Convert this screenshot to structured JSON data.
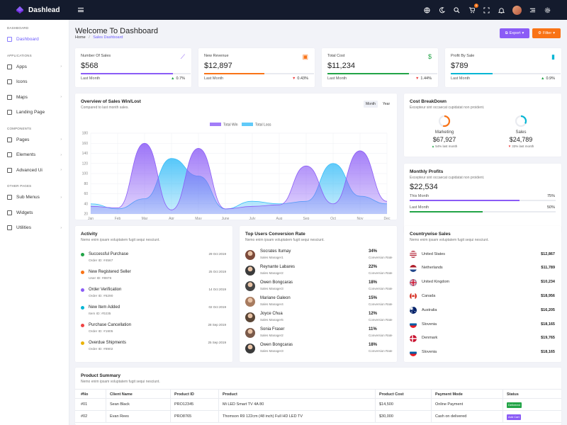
{
  "brand": "Dashlead",
  "sidebar": {
    "sections": [
      {
        "title": "DASHBOARD",
        "items": [
          {
            "label": "Dashboard",
            "active": true
          }
        ]
      },
      {
        "title": "APPLICATIONS",
        "items": [
          {
            "label": "Apps",
            "chev": true
          },
          {
            "label": "Icons"
          },
          {
            "label": "Maps",
            "chev": true
          },
          {
            "label": "Landing Page"
          }
        ]
      },
      {
        "title": "COMPONENTS",
        "items": [
          {
            "label": "Pages",
            "chev": true
          },
          {
            "label": "Elements",
            "chev": true
          },
          {
            "label": "Advanced Ui",
            "chev": true
          }
        ]
      },
      {
        "title": "OTHER PAGES",
        "items": [
          {
            "label": "Sub Menus",
            "chev": true
          },
          {
            "label": "Widgets"
          },
          {
            "label": "Utilities",
            "chev": true
          }
        ]
      }
    ]
  },
  "topbar": {
    "cart_badge": "5"
  },
  "page": {
    "title": "Welcome To Dashboard",
    "crumb_home": "Home",
    "crumb_sep": "/",
    "crumb_current": "Sales Dashboard",
    "export_label": "Export",
    "filter_label": "Filter"
  },
  "stats": [
    {
      "label": "Number Of Sales",
      "value": "$568",
      "pct": "0.7%",
      "last": "Last Month",
      "color": "#8b5cf6",
      "fill": 0.84,
      "icon": "chart-line-icon",
      "up": true
    },
    {
      "label": "New Revenue",
      "value": "$12,897",
      "pct": "0.43%",
      "last": "Last Month",
      "color": "#f97316",
      "fill": 0.55,
      "icon": "cash-icon",
      "up": false
    },
    {
      "label": "Total Cost",
      "value": "$11,234",
      "pct": "1.44%",
      "last": "Last Month",
      "color": "#22a447",
      "fill": 0.74,
      "icon": "dollar-icon",
      "up": false
    },
    {
      "label": "Profit By Sale",
      "value": "$789",
      "pct": "0.9%",
      "last": "Last Month",
      "color": "#06b6d4",
      "fill": 0.38,
      "icon": "signal-icon",
      "up": true
    }
  ],
  "overview": {
    "title": "Overview of Sales Win/Lost",
    "subtitle": "Compared to last month sales.",
    "tab_month": "Month",
    "tab_year": "Year"
  },
  "chart_data": {
    "type": "area",
    "categories": [
      "Jan",
      "Feb",
      "Mar",
      "Apr",
      "May",
      "June",
      "July",
      "Aug",
      "Sep",
      "Oct",
      "Nov",
      "Dec"
    ],
    "series": [
      {
        "name": "Total Win",
        "color": "#8b5cf6",
        "values": [
          35,
          32,
          160,
          28,
          150,
          30,
          35,
          38,
          115,
          40,
          145,
          45
        ]
      },
      {
        "name": "Total Loss",
        "color": "#38bdf8",
        "values": [
          40,
          30,
          50,
          130,
          95,
          30,
          45,
          40,
          45,
          120,
          55,
          40
        ]
      }
    ],
    "ylim": [
      20,
      180
    ],
    "yticks": [
      20,
      40,
      60,
      80,
      100,
      120,
      140,
      160,
      180
    ]
  },
  "cost": {
    "title": "Cost BreakDown",
    "subtitle": "Excepteur sint occaecat cupidatat non proident.",
    "items": [
      {
        "label": "Marketing",
        "value": "$67,927",
        "note": "54% last month",
        "color": "#f97316",
        "up": true,
        "frac": 0.54
      },
      {
        "label": "Sales",
        "value": "$24,789",
        "note": "33% last month",
        "color": "#06b6d4",
        "up": false,
        "frac": 0.33
      }
    ]
  },
  "profits": {
    "title": "Monthly Profits",
    "subtitle": "Excepteur sint occaecat cupidatat non proident.",
    "value": "$22,534",
    "rows": [
      {
        "label": "This Month",
        "pct": "75%",
        "color": "#8b5cf6",
        "frac": 0.75
      },
      {
        "label": "Last Month",
        "pct": "50%",
        "color": "#22a447",
        "frac": 0.5
      }
    ]
  },
  "activity": {
    "title": "Activity",
    "subtitle": "Nemo enim ipsam voluptatem fugit sequi nesciunt.",
    "items": [
      {
        "title": "Successful Purchase",
        "sub": "Order ID: #4567",
        "date": "29 Oct 2019",
        "color": "#22a447"
      },
      {
        "title": "New Registered Seller",
        "sub": "User ID: #8976",
        "date": "25 Oct 2019",
        "color": "#f97316"
      },
      {
        "title": "Order Verification",
        "sub": "Order ID: #6290",
        "date": "14 Oct 2019",
        "color": "#8b5cf6"
      },
      {
        "title": "New Item Added",
        "sub": "Item ID: #0235",
        "date": "02 Oct 2019",
        "color": "#06b6d4"
      },
      {
        "title": "Purchase Cancellation",
        "sub": "Order ID: #1905",
        "date": "28 Sep 2019",
        "color": "#ef4444"
      },
      {
        "title": "Overdue Shipments",
        "sub": "Order ID: #8902",
        "date": "25 Sep 2019",
        "color": "#eab308"
      }
    ]
  },
  "users": {
    "title": "Top Users Conversion Rate",
    "subtitle": "Nemo enim ipsam voluptatem fugit sequi nesciunt.",
    "items": [
      {
        "name": "Socrates Itumay",
        "role": "Sales Manager1",
        "pct": "34%",
        "note": "Conversion Rate"
      },
      {
        "name": "Reynante Labares",
        "role": "Sales Manager2",
        "pct": "22%",
        "note": "Conversion Rate"
      },
      {
        "name": "Owen Bongcaras",
        "role": "Sales Manager3",
        "pct": "18%",
        "note": "Conversion Rate"
      },
      {
        "name": "Mariane Galeon",
        "role": "Sales Manager4",
        "pct": "15%",
        "note": "Conversion Rate"
      },
      {
        "name": "Joyce Chua",
        "role": "Sales Manager5",
        "pct": "12%",
        "note": "Conversion Rate"
      },
      {
        "name": "Sonia Fraser",
        "role": "Sales Manager2",
        "pct": "11%",
        "note": "Conversion Rate"
      },
      {
        "name": "Owen Bongcaras",
        "role": "Sales Manager3",
        "pct": "18%",
        "note": "Conversion Rate"
      }
    ]
  },
  "countries": {
    "title": "Countrywise Sales",
    "subtitle": "Nemo enim ipsam voluptatem fugit sequi nesciunt.",
    "items": [
      {
        "name": "United States",
        "value": "$12,867",
        "flag": "us"
      },
      {
        "name": "Netherlands",
        "value": "$11,789",
        "flag": "nl"
      },
      {
        "name": "United Kingdom",
        "value": "$10,234",
        "flag": "uk"
      },
      {
        "name": "Canada",
        "value": "$18,956",
        "flag": "ca"
      },
      {
        "name": "Australia",
        "value": "$16,205",
        "flag": "au"
      },
      {
        "name": "Slovenia",
        "value": "$18,165",
        "flag": "si"
      },
      {
        "name": "Denmark",
        "value": "$19,765",
        "flag": "dk"
      },
      {
        "name": "Slovenia",
        "value": "$18,165",
        "flag": "si"
      }
    ]
  },
  "products": {
    "title": "Product Summary",
    "subtitle": "Nemo enim ipsam voluptatem fugit sequi nesciunt.",
    "headers": [
      "#No",
      "Client Name",
      "Product ID",
      "Product",
      "Product Cost",
      "Payment Mode",
      "Status"
    ],
    "rows": [
      [
        "#01",
        "Sean Black",
        "PRO12345",
        "Mi LED Smart TV 4A 80",
        "$14,500",
        "Online Payment",
        "Delivered"
      ],
      [
        "#02",
        "Evan Rees",
        "PRO8765",
        "Thomson R9 122cm (48 inch) Full HD LED TV",
        "$30,000",
        "Cash on delivered",
        "Add Cart"
      ]
    ],
    "status_colors": [
      "#22a447",
      "#8b5cf6"
    ]
  }
}
